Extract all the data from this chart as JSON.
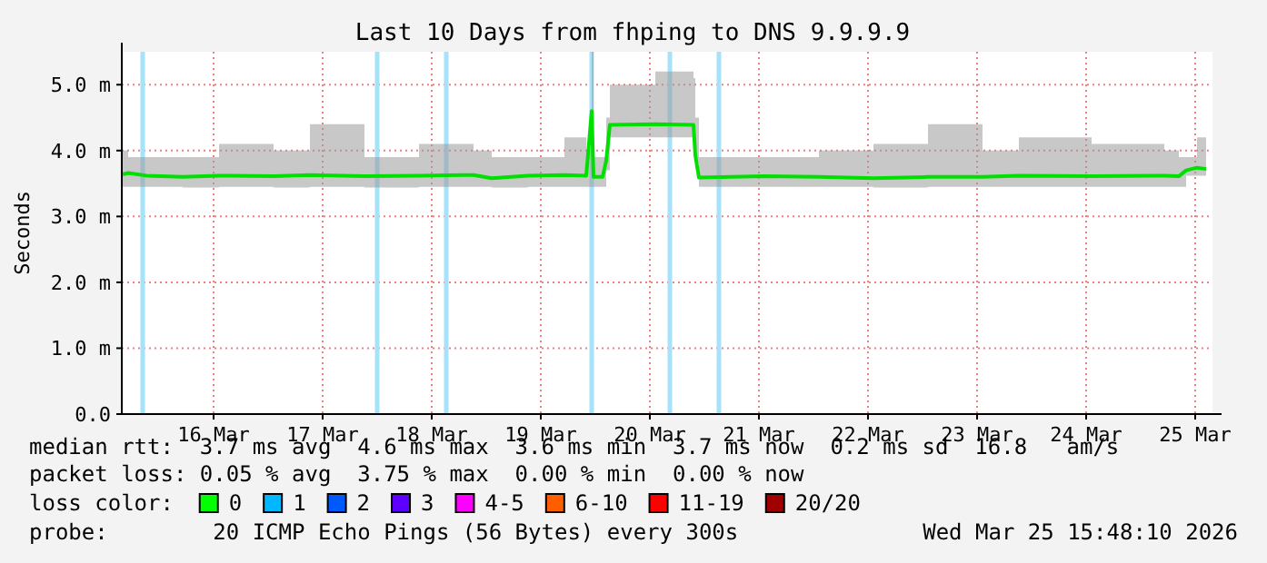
{
  "chart_data": {
    "type": "line",
    "title": "Last 10 Days from fhping to DNS 9.9.9.9",
    "ylabel": "Seconds",
    "xlim": [
      "2026-03-15T15:48",
      "2026-03-25T15:48"
    ],
    "xticks": [
      {
        "value": "2026-03-16T12:00",
        "label": "16 Mar"
      },
      {
        "value": "2026-03-17T12:00",
        "label": "17 Mar"
      },
      {
        "value": "2026-03-18T12:00",
        "label": "18 Mar"
      },
      {
        "value": "2026-03-19T12:00",
        "label": "19 Mar"
      },
      {
        "value": "2026-03-20T12:00",
        "label": "20 Mar"
      },
      {
        "value": "2026-03-21T12:00",
        "label": "21 Mar"
      },
      {
        "value": "2026-03-22T12:00",
        "label": "22 Mar"
      },
      {
        "value": "2026-03-23T12:00",
        "label": "23 Mar"
      },
      {
        "value": "2026-03-24T12:00",
        "label": "24 Mar"
      },
      {
        "value": "2026-03-25T12:00",
        "label": "25 Mar"
      }
    ],
    "ylim": [
      0,
      5.5
    ],
    "yticks": [
      {
        "value": 0,
        "label": "0.0"
      },
      {
        "value": 1,
        "label": "1.0 m"
      },
      {
        "value": 2,
        "label": "2.0 m"
      },
      {
        "value": 3,
        "label": "3.0 m"
      },
      {
        "value": 4,
        "label": "4.0 m"
      },
      {
        "value": 5,
        "label": "5.0 m"
      }
    ],
    "grid": true,
    "marker": "none",
    "line_style": "solid",
    "series": [
      {
        "color": "#00e000",
        "x": [
          "2026-03-15T16:00",
          "2026-03-15T17:12",
          "2026-03-15T21:12",
          "2026-03-16T05:12",
          "2026-03-16T13:12",
          "2026-03-17T01:12",
          "2026-03-17T09:12",
          "2026-03-17T21:12",
          "2026-03-18T09:12",
          "2026-03-18T21:12",
          "2026-03-19T01:12",
          "2026-03-19T09:12",
          "2026-03-19T17:12",
          "2026-03-19T22:00",
          "2026-03-19T23:12",
          "2026-03-19T23:36",
          "2026-03-20T01:36",
          "2026-03-20T02:24",
          "2026-03-20T03:12",
          "2026-03-20T13:12",
          "2026-03-20T21:36",
          "2026-03-20T22:00",
          "2026-03-20T22:48",
          "2026-03-21T13:12",
          "2026-03-22T01:12",
          "2026-03-22T13:12",
          "2026-03-23T01:12",
          "2026-03-23T13:12",
          "2026-03-23T21:12",
          "2026-03-24T13:12",
          "2026-03-25T05:12",
          "2026-03-25T08:24",
          "2026-03-25T10:00",
          "2026-03-25T12:24",
          "2026-03-25T14:24"
        ],
        "values": [
          3.64,
          3.66,
          3.62,
          3.6,
          3.62,
          3.61,
          3.63,
          3.61,
          3.62,
          3.63,
          3.58,
          3.62,
          3.63,
          3.62,
          4.6,
          3.6,
          3.6,
          3.85,
          4.39,
          4.4,
          4.39,
          3.93,
          3.59,
          3.61,
          3.6,
          3.58,
          3.6,
          3.6,
          3.62,
          3.61,
          3.62,
          3.61,
          3.7,
          3.74,
          3.72
        ],
        "lower": [
          3.45,
          3.45,
          3.45,
          3.44,
          3.45,
          3.44,
          3.45,
          3.44,
          3.45,
          3.45,
          3.44,
          3.45,
          3.45,
          3.45,
          3.45,
          3.45,
          3.45,
          3.7,
          4.2,
          4.2,
          4.2,
          3.8,
          3.45,
          3.45,
          3.45,
          3.44,
          3.45,
          3.45,
          3.45,
          3.45,
          3.45,
          3.45,
          3.62,
          3.62,
          3.62
        ],
        "upper": [
          4.0,
          3.9,
          3.9,
          3.9,
          4.1,
          4.0,
          4.4,
          3.9,
          4.1,
          4.0,
          3.9,
          3.9,
          4.2,
          4.0,
          5.5,
          3.9,
          3.9,
          4.5,
          5.0,
          5.2,
          5.1,
          4.5,
          3.9,
          3.9,
          4.0,
          4.1,
          4.4,
          4.0,
          4.2,
          4.1,
          4.0,
          3.9,
          3.9,
          4.2,
          4.1
        ]
      }
    ],
    "ref_lines": [
      {
        "axis": "x",
        "value": "2026-03-15T20:24",
        "color": "#a6e3fa"
      },
      {
        "axis": "x",
        "value": "2026-03-18T00:00",
        "color": "#a6e3fa"
      },
      {
        "axis": "x",
        "value": "2026-03-18T15:12",
        "color": "#a6e3fa"
      },
      {
        "axis": "x",
        "value": "2026-03-19T23:12",
        "color": "#a6e3fa"
      },
      {
        "axis": "x",
        "value": "2026-03-20T16:24",
        "color": "#a6e3fa"
      },
      {
        "axis": "x",
        "value": "2026-03-21T03:12",
        "color": "#a6e3fa"
      }
    ],
    "annotations": [
      "median rtt:  3.7 ms avg  4.6 ms max  3.6 ms min  3.7 ms now  0.2 ms sd  16.8   am/s",
      "packet loss: 0.05 % avg  3.75 % max  0.00 % min  0.00 % now",
      "loss color:",
      "0",
      "1",
      "2",
      "3",
      "4-5",
      "6-10",
      "11-19",
      "20/20",
      "probe:        20 ICMP Echo Pings (56 Bytes) every 300s",
      "Wed Mar 25 15:48:10 2026"
    ]
  }
}
